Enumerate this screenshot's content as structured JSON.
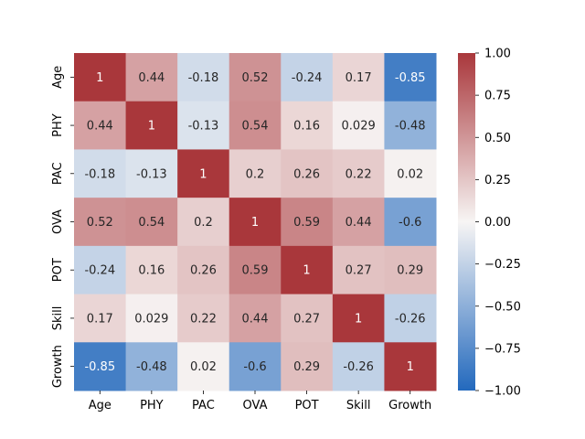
{
  "chart_data": {
    "type": "heatmap",
    "title": "",
    "xlabel": "",
    "ylabel": "",
    "rows": [
      "Age",
      "PHY",
      "PAC",
      "OVA",
      "POT",
      "Skill",
      "Growth"
    ],
    "columns": [
      "Age",
      "PHY",
      "PAC",
      "OVA",
      "POT",
      "Skill",
      "Growth"
    ],
    "values": [
      [
        1,
        0.44,
        -0.18,
        0.52,
        -0.24,
        0.17,
        -0.85
      ],
      [
        0.44,
        1,
        -0.13,
        0.54,
        0.16,
        0.029,
        -0.48
      ],
      [
        -0.18,
        -0.13,
        1,
        0.2,
        0.26,
        0.22,
        0.02
      ],
      [
        0.52,
        0.54,
        0.2,
        1,
        0.59,
        0.44,
        -0.6
      ],
      [
        -0.24,
        0.16,
        0.26,
        0.59,
        1,
        0.27,
        0.29
      ],
      [
        0.17,
        0.029,
        0.22,
        0.44,
        0.27,
        1,
        -0.26
      ],
      [
        -0.85,
        -0.48,
        0.02,
        -0.6,
        0.29,
        -0.26,
        1
      ]
    ],
    "cell_labels": [
      [
        "1",
        "0.44",
        "-0.18",
        "0.52",
        "-0.24",
        "0.17",
        "-0.85"
      ],
      [
        "0.44",
        "1",
        "-0.13",
        "0.54",
        "0.16",
        "0.029",
        "-0.48"
      ],
      [
        "-0.18",
        "-0.13",
        "1",
        "0.2",
        "0.26",
        "0.22",
        "0.02"
      ],
      [
        "0.52",
        "0.54",
        "0.2",
        "1",
        "0.59",
        "0.44",
        "-0.6"
      ],
      [
        "-0.24",
        "0.16",
        "0.26",
        "0.59",
        "1",
        "0.27",
        "0.29"
      ],
      [
        "0.17",
        "0.029",
        "0.22",
        "0.44",
        "0.27",
        "1",
        "-0.26"
      ],
      [
        "-0.85",
        "-0.48",
        "0.02",
        "-0.6",
        "0.29",
        "-0.26",
        "1"
      ]
    ],
    "vmin": -1.0,
    "vmax": 1.0,
    "colormap": "vlag",
    "colorbar": {
      "ticks": [
        1.0,
        0.75,
        0.5,
        0.25,
        0.0,
        -0.25,
        -0.5,
        -0.75,
        -1.0
      ],
      "tick_labels": [
        "1.00",
        "0.75",
        "0.50",
        "0.25",
        "0.00",
        "−0.25",
        "−0.50",
        "−0.75",
        "−1.00"
      ]
    },
    "colors": {
      "negative": "#2369bd",
      "neutral": "#f7f5f4",
      "positive": "#a9373b"
    }
  }
}
